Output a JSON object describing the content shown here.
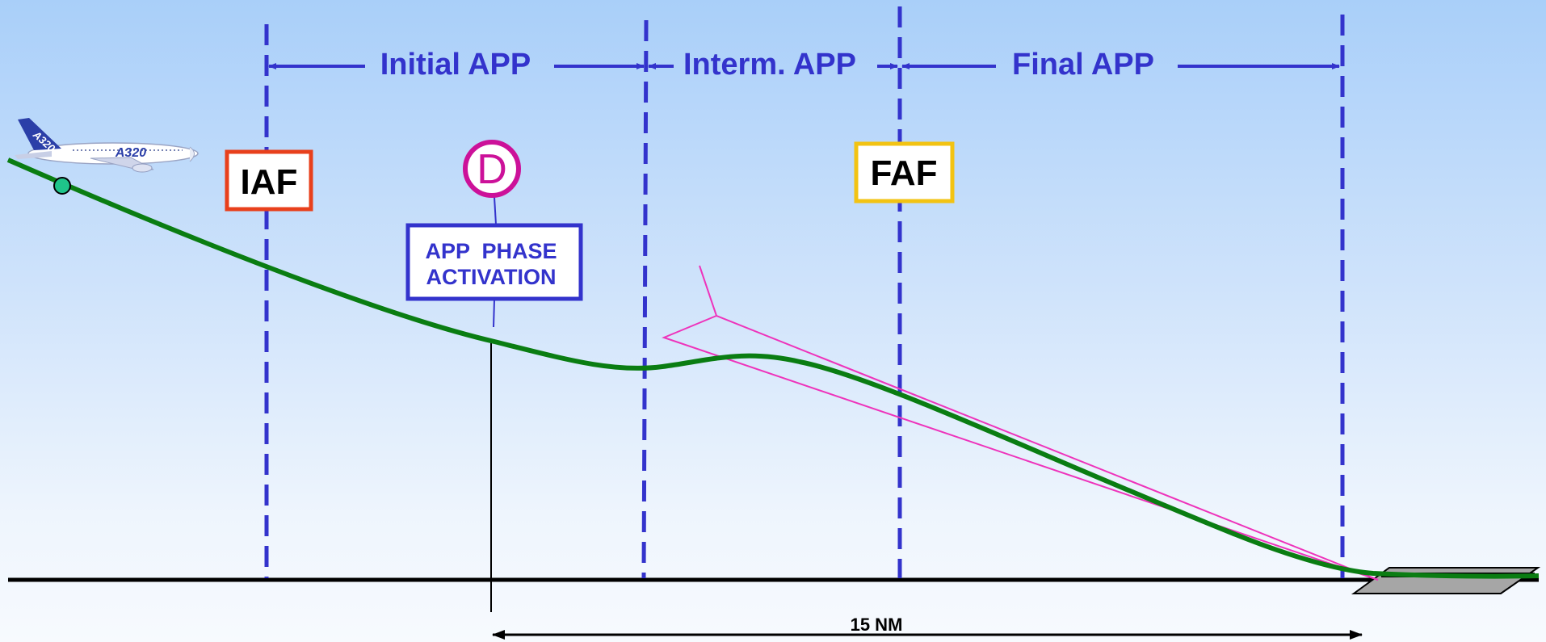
{
  "phases": {
    "initial": "Initial APP",
    "intermediate": "Interm. APP",
    "final": "Final APP"
  },
  "fixes": {
    "iaf": "IAF",
    "faf": "FAF"
  },
  "decel_marker": "D",
  "activation": {
    "line1": "APP  PHASE",
    "line2": "ACTIVATION"
  },
  "distance_label": "15 NM",
  "aircraft": {
    "fuselage_text": "A320",
    "tail_text": "A320"
  },
  "colors": {
    "boundary": "#3333cc",
    "path": "#0a7d12",
    "iaf_box": "#e8401c",
    "faf_box": "#f2c313",
    "decel": "#cc1199",
    "cone": "#ee33bb",
    "ground": "#000000",
    "aircraft_dot": "#1fc48a"
  }
}
